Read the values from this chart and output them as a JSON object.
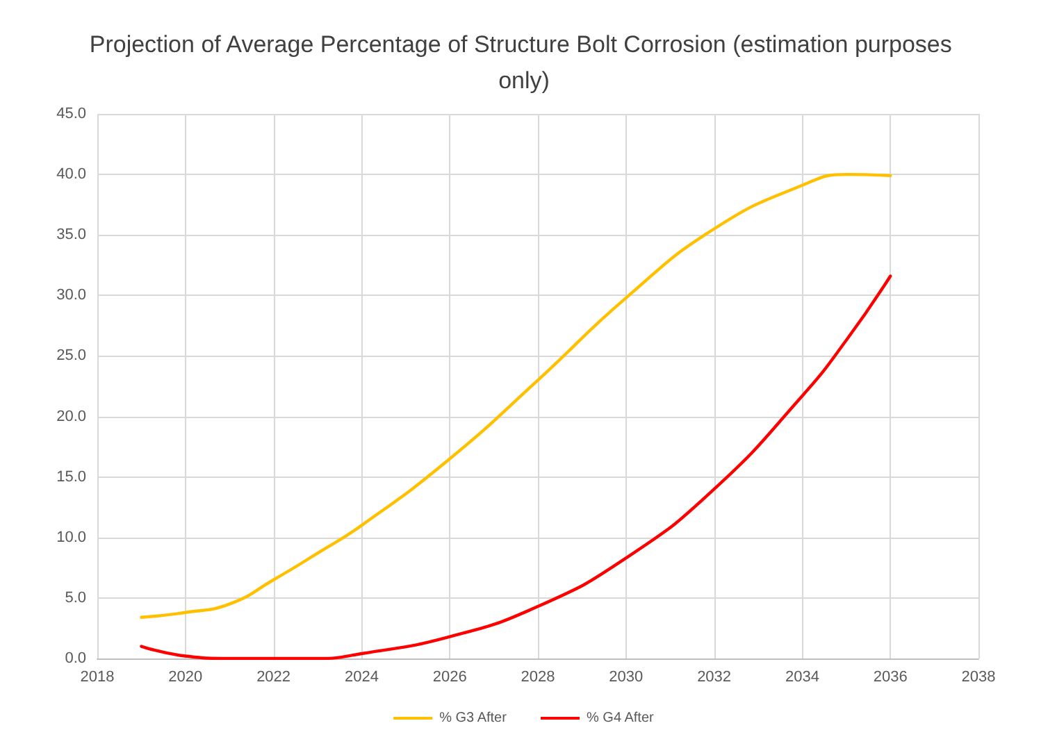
{
  "chart_data": {
    "type": "line",
    "title": "Projection of Average Percentage of Structure Bolt Corrosion (estimation purposes only)",
    "x": [
      2019,
      2020,
      2021,
      2022,
      2023,
      2024,
      2026,
      2028,
      2030,
      2032,
      2034,
      2035,
      2036
    ],
    "series": [
      {
        "name": "% G3 After",
        "color": "#ffc000",
        "values": [
          3.4,
          3.8,
          4.5,
          6.5,
          8.7,
          11.0,
          16.5,
          23.0,
          29.8,
          35.5,
          39.1,
          40.0,
          39.9
        ]
      },
      {
        "name": "% G4 After",
        "color": "#ff0000",
        "values": [
          1.0,
          0.2,
          0.0,
          0.0,
          0.0,
          0.4,
          1.8,
          4.3,
          8.3,
          14.0,
          21.7,
          26.3,
          31.6
        ]
      }
    ],
    "xlim": [
      2018,
      2038
    ],
    "xticks": [
      2018,
      2020,
      2022,
      2024,
      2026,
      2028,
      2030,
      2032,
      2034,
      2036,
      2038
    ],
    "ylim": [
      0,
      45
    ],
    "yticks": [
      {
        "value": 0,
        "label": "0.0"
      },
      {
        "value": 5,
        "label": "5.0"
      },
      {
        "value": 10,
        "label": "10.0"
      },
      {
        "value": 15,
        "label": "15.0"
      },
      {
        "value": 20,
        "label": "20.0"
      },
      {
        "value": 25,
        "label": "25.0"
      },
      {
        "value": 30,
        "label": "30.0"
      },
      {
        "value": 35,
        "label": "35.0"
      },
      {
        "value": 40,
        "label": "40.0"
      },
      {
        "value": 45,
        "label": "45.0"
      }
    ],
    "grid": true,
    "legend": "bottom",
    "marker": "none",
    "line_style": "solid"
  }
}
